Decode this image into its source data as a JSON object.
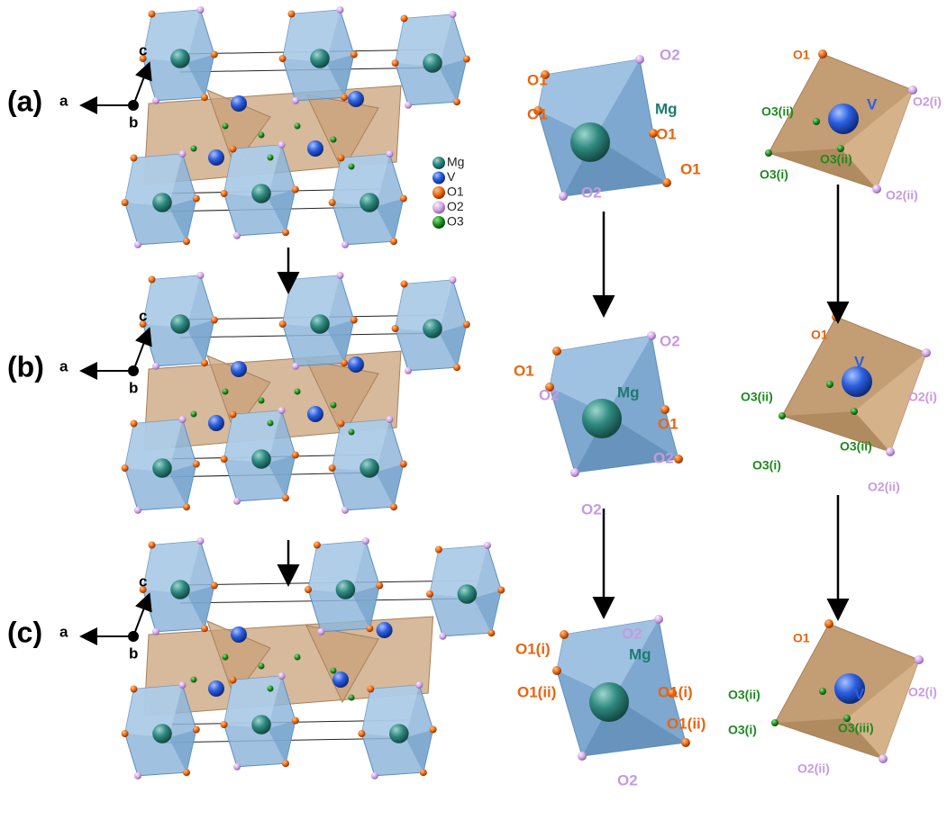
{
  "panels": [
    {
      "label": "(a)",
      "axes": {
        "a": "a",
        "b": "b",
        "c": "c"
      },
      "mg_octahedron": [
        "O1",
        "O2",
        "O1",
        "Mg",
        "O1",
        "O1",
        "O2"
      ],
      "v_tetrahedron": [
        "O1",
        "V",
        "O2(i)",
        "O3(ii)",
        "O3(ii)",
        "O3(i)",
        "O2(ii)"
      ]
    },
    {
      "label": "(b)",
      "axes": {
        "a": "a",
        "b": "b",
        "c": "c"
      },
      "mg_octahedron": [
        "O1",
        "O2",
        "O2",
        "Mg",
        "O1",
        "O2",
        "O2"
      ],
      "v_tetrahedron": [
        "O1",
        "V",
        "O3(ii)",
        "O2(i)",
        "O3(ii)",
        "O3(i)",
        "O2(ii)"
      ]
    },
    {
      "label": "(c)",
      "axes": {
        "a": "a",
        "b": "b",
        "c": "c"
      },
      "mg_octahedron": [
        "O1(i)",
        "O2",
        "O1(ii)",
        "Mg",
        "O1(i)",
        "O1(ii)",
        "O2"
      ],
      "v_tetrahedron": [
        "O1",
        "O3(ii)",
        "V",
        "O2(i)",
        "O3(i)",
        "O3(iii)",
        "O2(ii)"
      ]
    }
  ],
  "legend": [
    "Mg",
    "V",
    "O1",
    "O2",
    "O3"
  ]
}
